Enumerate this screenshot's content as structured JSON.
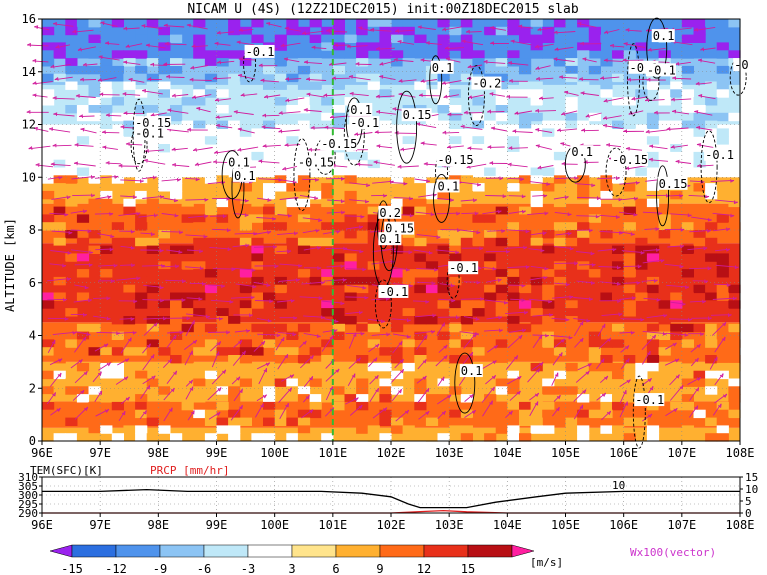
{
  "chart_data": [
    {
      "type": "heatmap",
      "title": "NICAM U (4S) (12Z21DEC2015) init:00Z18DEC2015 slab",
      "ylabel": "ALTITUDE [km]",
      "xlim": [
        96,
        108
      ],
      "ylim": [
        0,
        16
      ],
      "x_ticks": [
        "96E",
        "97E",
        "98E",
        "99E",
        "100E",
        "101E",
        "102E",
        "103E",
        "104E",
        "105E",
        "106E",
        "107E",
        "108E"
      ],
      "y_ticks": [
        "0",
        "2",
        "4",
        "6",
        "8",
        "10",
        "12",
        "14",
        "16"
      ],
      "x_ticks_bottom": [
        "96E",
        "97E",
        "98E",
        "99E",
        "100E",
        "101E",
        "102E",
        "103E",
        "104E",
        "105E",
        "106E",
        "107E",
        "108E"
      ],
      "colorbar": {
        "levels": [
          "-15",
          "-12",
          "-9",
          "-6",
          "-3",
          "3",
          "6",
          "9",
          "12",
          "15"
        ],
        "colors": [
          "#9a22ee",
          "#2c6fe0",
          "#4f93ec",
          "#8cc4f4",
          "#bfe8f8",
          "#ffffff",
          "#ffe48c",
          "#ffb030",
          "#ff6a18",
          "#e8301a",
          "#b80f14",
          "#ff1fa0"
        ],
        "unit": "[m/s]"
      },
      "layers": [
        {
          "z_bottom": 0,
          "z_top": 0.5,
          "u": 3
        },
        {
          "z_bottom": 0.5,
          "z_top": 1.5,
          "u": 7
        },
        {
          "z_bottom": 1.5,
          "z_top": 3.0,
          "u": 5
        },
        {
          "z_bottom": 3.0,
          "z_top": 4.5,
          "u": 8
        },
        {
          "z_bottom": 4.5,
          "z_top": 7.5,
          "u": 11
        },
        {
          "z_bottom": 7.5,
          "z_top": 9.0,
          "u": 8
        },
        {
          "z_bottom": 9.0,
          "z_top": 10.0,
          "u": 4
        },
        {
          "z_bottom": 10.0,
          "z_top": 12.0,
          "u": -3
        },
        {
          "z_bottom": 12.0,
          "z_top": 13.5,
          "u": -7
        },
        {
          "z_bottom": 13.5,
          "z_top": 14.5,
          "u": -11
        },
        {
          "z_bottom": 14.5,
          "z_top": 16.0,
          "u": -15
        }
      ],
      "marker_line_lon": 101,
      "contour_labels": [
        {
          "text": "-0.1",
          "lon": 99.5,
          "z": 14.6
        },
        {
          "text": "0.1",
          "lon": 101.3,
          "z": 12.4
        },
        {
          "text": "-0.1",
          "lon": 101.3,
          "z": 11.9
        },
        {
          "text": "-0.15",
          "lon": 97.6,
          "z": 11.9
        },
        {
          "text": "-0.1",
          "lon": 97.6,
          "z": 11.5
        },
        {
          "text": "0.1",
          "lon": 99.2,
          "z": 10.4
        },
        {
          "text": "0.1",
          "lon": 99.3,
          "z": 9.9
        },
        {
          "text": "-0.15",
          "lon": 100.4,
          "z": 10.4
        },
        {
          "text": "-0.15",
          "lon": 100.8,
          "z": 11.1
        },
        {
          "text": "0.1",
          "lon": 102.7,
          "z": 14.0
        },
        {
          "text": "-0.2",
          "lon": 103.4,
          "z": 13.4
        },
        {
          "text": "0.15",
          "lon": 102.2,
          "z": 12.2
        },
        {
          "text": "-0.15",
          "lon": 102.8,
          "z": 10.5
        },
        {
          "text": "0.1",
          "lon": 102.8,
          "z": 9.5
        },
        {
          "text": "0.1",
          "lon": 106.5,
          "z": 15.2
        },
        {
          "text": "-0.1",
          "lon": 106.1,
          "z": 14.0
        },
        {
          "text": "-0.1",
          "lon": 106.4,
          "z": 13.9
        },
        {
          "text": "-0.15",
          "lon": 105.8,
          "z": 10.5
        },
        {
          "text": "0.15",
          "lon": 106.6,
          "z": 9.6
        },
        {
          "text": "-0.1",
          "lon": 107.4,
          "z": 10.7
        },
        {
          "text": "0.1",
          "lon": 105.1,
          "z": 10.8
        },
        {
          "text": "0.2",
          "lon": 101.8,
          "z": 8.5
        },
        {
          "text": "0.15",
          "lon": 101.9,
          "z": 7.9
        },
        {
          "text": "0.1",
          "lon": 101.8,
          "z": 7.5
        },
        {
          "text": "-0.1",
          "lon": 103.0,
          "z": 6.4
        },
        {
          "text": "-0.1",
          "lon": 101.8,
          "z": 5.5
        },
        {
          "text": "0.1",
          "lon": 103.2,
          "z": 2.5
        },
        {
          "text": "-0.1",
          "lon": 106.2,
          "z": 1.4
        },
        {
          "text": "-0",
          "lon": 107.9,
          "z": 14.1
        }
      ]
    },
    {
      "type": "line",
      "ylabel_left": "TEM(SFC)[K]",
      "ylabel_right": "PRCP [mm/hr]",
      "yticks_left": [
        "310",
        "305",
        "300",
        "295",
        "290"
      ],
      "yticks_right": [
        "15",
        "10",
        "5",
        "0"
      ],
      "series": [
        {
          "name": "TEM(SFC)[K]",
          "x": [
            96,
            97,
            97.8,
            98.5,
            99,
            100,
            100.8,
            101.5,
            102,
            102.3,
            102.5,
            102.8,
            103.3,
            103.8,
            104.5,
            105,
            106,
            106.5,
            108
          ],
          "y": [
            302,
            302,
            303,
            302,
            302,
            302,
            302,
            301,
            299,
            295,
            293,
            293,
            293,
            296,
            299,
            301,
            302,
            302,
            302
          ]
        },
        {
          "name": "PRCP [mm/hr]",
          "x": [
            96,
            102,
            102.5,
            102.9,
            103.3,
            104,
            108
          ],
          "y": [
            0,
            0,
            0.6,
            1.0,
            0.5,
            0,
            0
          ]
        }
      ],
      "annotation": "10"
    }
  ],
  "wind_legend": "Wx100(vector)"
}
